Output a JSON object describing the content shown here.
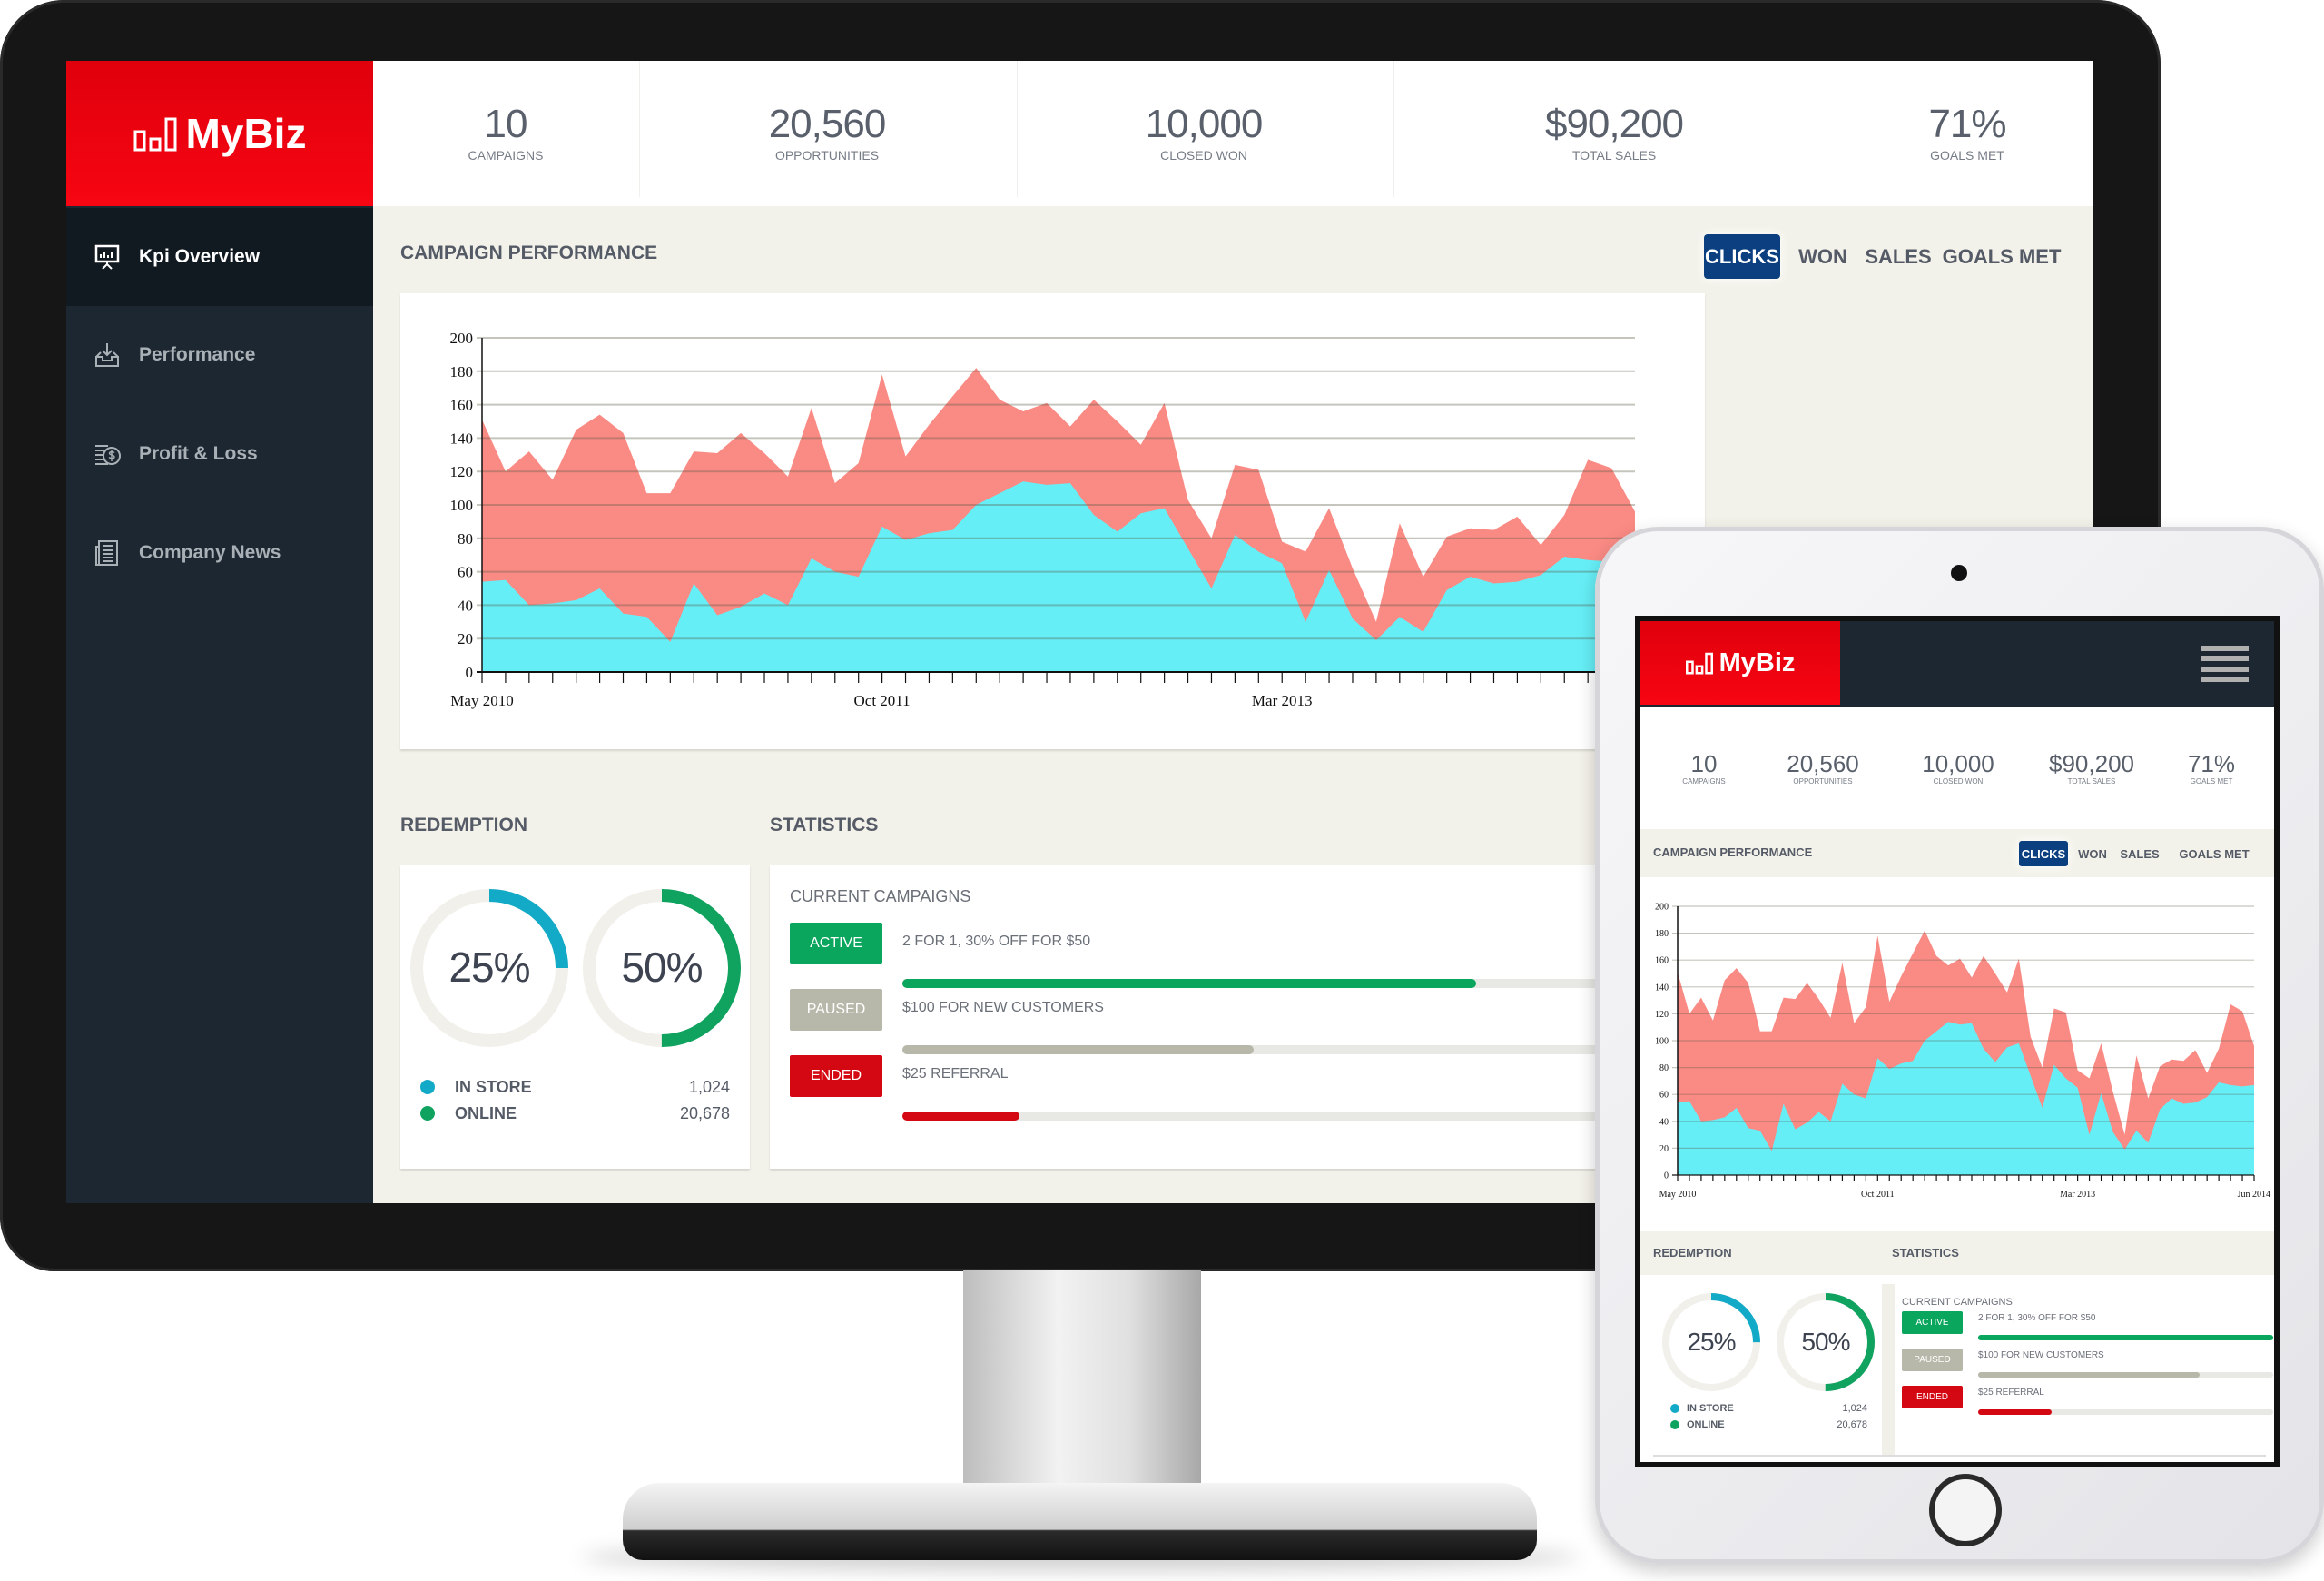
{
  "brand": {
    "name": "MyBiz",
    "accent": "#e8000e"
  },
  "sidebar": {
    "items": [
      {
        "label": "Kpi Overview",
        "icon": "presentation-chart-icon",
        "active": true
      },
      {
        "label": "Performance",
        "icon": "inbox-download-icon",
        "active": false
      },
      {
        "label": "Profit & Loss",
        "icon": "coins-icon",
        "active": false
      },
      {
        "label": "Company News",
        "icon": "newspaper-icon",
        "active": false
      }
    ]
  },
  "kpis": [
    {
      "value": "10",
      "label": "CAMPAIGNS"
    },
    {
      "value": "20,560",
      "label": "OPPORTUNITIES"
    },
    {
      "value": "10,000",
      "label": "CLOSED WON"
    },
    {
      "value": "$90,200",
      "label": "TOTAL SALES"
    },
    {
      "value": "71%",
      "label": "GOALS MET"
    }
  ],
  "campaign_performance": {
    "title": "CAMPAIGN PERFORMANCE",
    "tabs": [
      {
        "label": "CLICKS",
        "active": true
      },
      {
        "label": "WON"
      },
      {
        "label": "SALES"
      },
      {
        "label": "GOALS MET"
      }
    ]
  },
  "chart_data": {
    "type": "area",
    "overlapping": true,
    "x_start": "May 2010",
    "x_end": "Jun 2014",
    "x_interval": "month",
    "x_tick_labels": [
      "May 2010",
      "Oct 2011",
      "Mar 2013",
      "Jun 2014"
    ],
    "ylim": [
      0,
      200
    ],
    "y_ticks": [
      0,
      20,
      40,
      60,
      80,
      100,
      120,
      140,
      160,
      180,
      200
    ],
    "grid": true,
    "series": [
      {
        "color": "#fa8a84",
        "values": [
          151,
          120,
          132,
          115,
          145,
          154,
          143,
          107,
          107,
          132,
          131,
          143,
          131,
          117,
          158,
          113,
          125,
          178,
          129,
          148,
          165,
          182,
          163,
          156,
          161,
          147,
          163,
          150,
          136,
          161,
          103,
          80,
          124,
          121,
          78,
          72,
          98,
          62,
          30,
          89,
          57,
          81,
          86,
          85,
          93,
          76,
          94,
          127,
          122,
          96
        ]
      },
      {
        "color": "#66eef6",
        "values": [
          54,
          55,
          40,
          41,
          43,
          50,
          35,
          33,
          18,
          53,
          34,
          39,
          47,
          40,
          68,
          60,
          57,
          87,
          79,
          83,
          85,
          100,
          107,
          114,
          112,
          113,
          94,
          84,
          95,
          98,
          74,
          50,
          82,
          72,
          65,
          30,
          61,
          32,
          19,
          33,
          24,
          49,
          57,
          53,
          54,
          58,
          69,
          67,
          66,
          67
        ]
      }
    ]
  },
  "redemption": {
    "title": "REDEMPTION",
    "donuts": [
      {
        "percent": 25,
        "label": "25%",
        "color": "#13aac8"
      },
      {
        "percent": 50,
        "label": "50%",
        "color": "#0fa35f"
      }
    ],
    "legend": [
      {
        "label": "IN STORE",
        "value": "1,024",
        "color": "#13aac8"
      },
      {
        "label": "ONLINE",
        "value": "20,678",
        "color": "#0fa35f"
      }
    ]
  },
  "statistics": {
    "title": "STATISTICS",
    "subtitle": "CURRENT CAMPAIGNS",
    "campaigns": [
      {
        "status": "ACTIVE",
        "name": "2 FOR 1, 30% OFF FOR $50",
        "color": "#0aa65e",
        "progress_desktop": 49,
        "progress_tablet": 100
      },
      {
        "status": "PAUSED",
        "name": "$100 FOR NEW CUSTOMERS",
        "color": "#b8b8aa",
        "progress_desktop": 30,
        "progress_tablet": 75
      },
      {
        "status": "ENDED",
        "name": "$25 REFERRAL",
        "color": "#d40812",
        "progress_desktop": 10,
        "progress_tablet": 25
      }
    ]
  },
  "tablet": {
    "menu_icon": "hamburger-menu-icon"
  }
}
